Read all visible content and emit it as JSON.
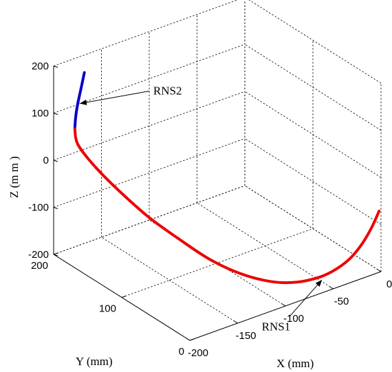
{
  "chart_data": {
    "type": "line3d",
    "title": "",
    "xlabel": "X (mm)",
    "ylabel": "Y (mm)",
    "zlabel": "Z (m m )",
    "xlim": [
      -200,
      0
    ],
    "ylim": [
      0,
      200
    ],
    "zlim": [
      -200,
      200
    ],
    "grid": true,
    "x_ticks": [
      {
        "value": -200,
        "label": "-200"
      },
      {
        "value": -150,
        "label": "-150"
      },
      {
        "value": -100,
        "label": "-100"
      },
      {
        "value": -50,
        "label": "-50"
      },
      {
        "value": 0,
        "label": "0"
      }
    ],
    "y_ticks": [
      {
        "value": 0,
        "label": "0"
      },
      {
        "value": 100,
        "label": "100"
      },
      {
        "value": 200,
        "label": "200"
      }
    ],
    "z_ticks": [
      {
        "value": -200,
        "label": "-200"
      },
      {
        "value": -100,
        "label": "-100"
      },
      {
        "value": 0,
        "label": "0"
      },
      {
        "value": 100,
        "label": "100"
      },
      {
        "value": 200,
        "label": "200"
      }
    ],
    "series": [
      {
        "name": "RNS2",
        "color": "#0000cc",
        "points": [
          [
            -175,
            190,
            177
          ],
          [
            -178,
            190,
            150
          ],
          [
            -182,
            190,
            115
          ],
          [
            -184,
            190,
            90
          ],
          [
            -185,
            190,
            65
          ]
        ]
      },
      {
        "name": "RNS1",
        "color": "#ee0000",
        "points": [
          [
            -185,
            190,
            65
          ],
          [
            -185,
            185,
            35
          ],
          [
            -180,
            165,
            0
          ],
          [
            -172,
            140,
            -35
          ],
          [
            -163,
            112,
            -68
          ],
          [
            -150,
            85,
            -100
          ],
          [
            -137,
            60,
            -128
          ],
          [
            -120,
            40,
            -152
          ],
          [
            -100,
            22,
            -168
          ],
          [
            -80,
            12,
            -175
          ],
          [
            -60,
            5,
            -172
          ],
          [
            -45,
            2,
            -163
          ],
          [
            -32,
            0,
            -148
          ],
          [
            -20,
            0,
            -127
          ],
          [
            -10,
            0,
            -100
          ],
          [
            -2,
            0,
            -70
          ]
        ]
      }
    ],
    "annotations": [
      {
        "text": "RNS2",
        "series": "RNS2",
        "point_index": 2
      },
      {
        "text": "RNS1",
        "series": "RNS1",
        "point_index": 10
      }
    ]
  }
}
